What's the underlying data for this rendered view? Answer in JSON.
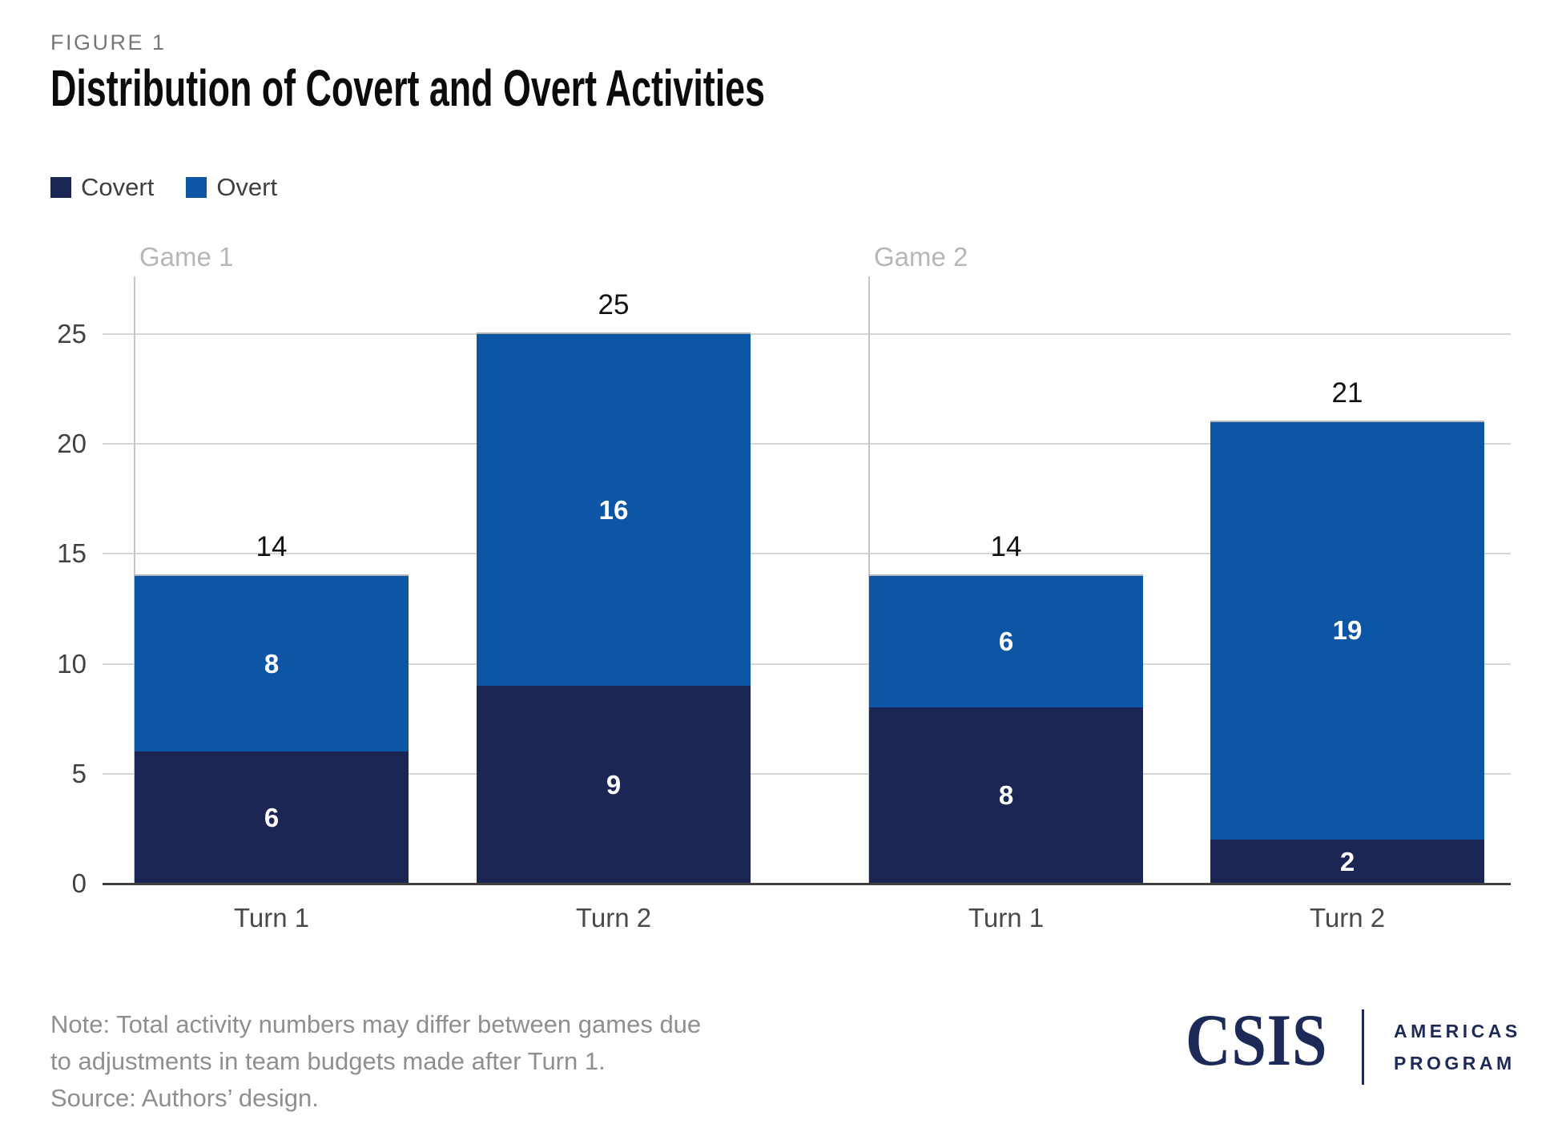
{
  "figure": {
    "label": "FIGURE 1",
    "title": "Distribution of Covert and Overt Activities"
  },
  "chart_data": {
    "type": "bar",
    "stacked": true,
    "grid": true,
    "legend": [
      "Covert",
      "Overt"
    ],
    "legend_position": "top-left",
    "ylim": [
      0,
      27.5
    ],
    "yticks": [
      0,
      5,
      10,
      15,
      20,
      25
    ],
    "colors": {
      "covert": "#1C2655",
      "overt": "#0C56A5"
    },
    "panels": [
      {
        "label": "Game 1",
        "categories": [
          "Turn 1",
          "Turn 2"
        ],
        "series": [
          {
            "name": "Covert",
            "values": [
              6,
              9
            ]
          },
          {
            "name": "Overt",
            "values": [
              8,
              16
            ]
          }
        ],
        "totals": [
          14,
          25
        ]
      },
      {
        "label": "Game 2",
        "categories": [
          "Turn 1",
          "Turn 2"
        ],
        "series": [
          {
            "name": "Covert",
            "values": [
              8,
              2
            ]
          },
          {
            "name": "Overt",
            "values": [
              6,
              19
            ]
          }
        ],
        "totals": [
          14,
          21
        ]
      }
    ]
  },
  "footer": {
    "note_lines": [
      "Note: Total activity numbers may differ between games due",
      "to adjustments in team budgets made after Turn 1."
    ],
    "source": "Source: Authors’ design.",
    "logo": {
      "csis": "CSIS",
      "program_lines": [
        "AMERICAS",
        "PROGRAM"
      ],
      "color": "#1D2A57"
    }
  }
}
